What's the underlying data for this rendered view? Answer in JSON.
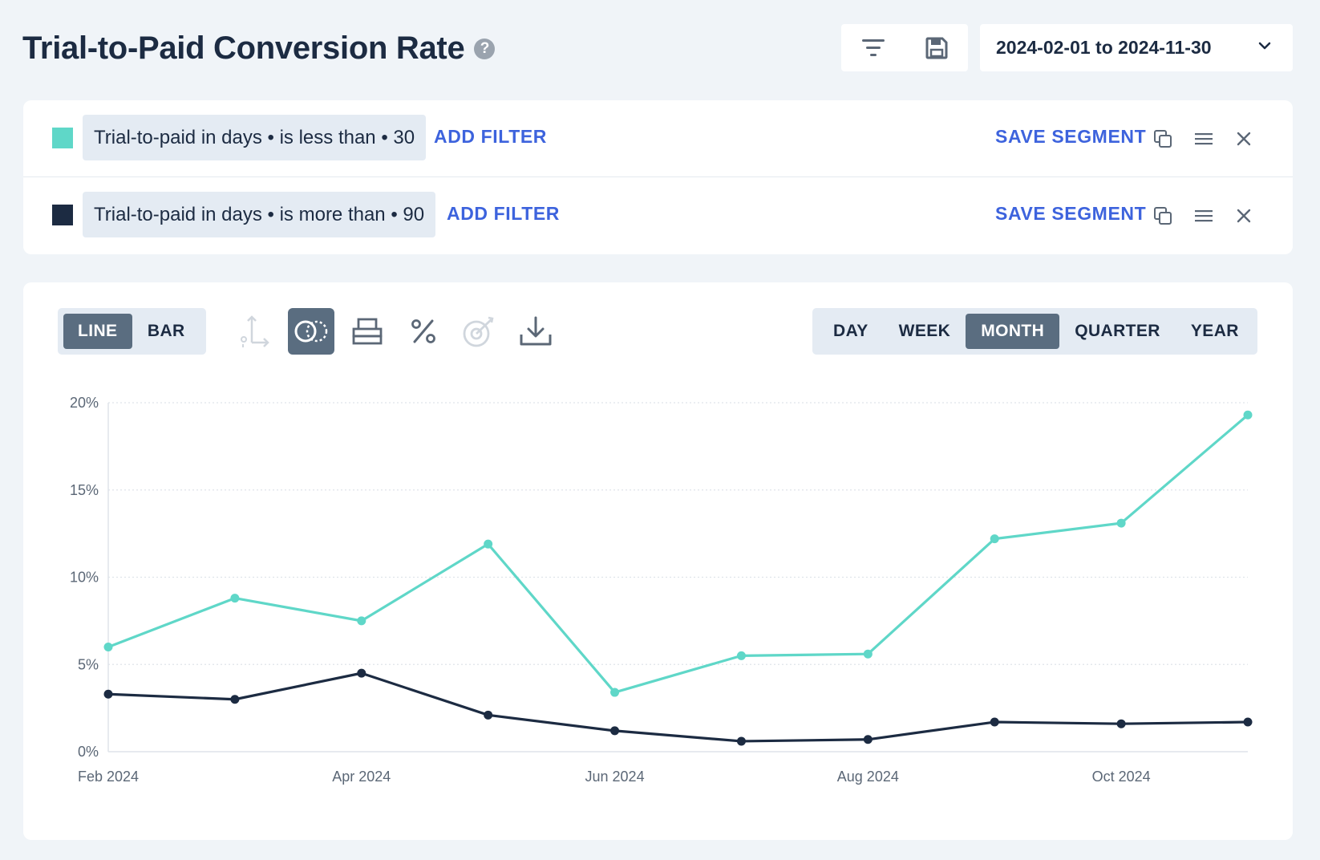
{
  "header": {
    "title": "Trial-to-Paid Conversion Rate",
    "help_glyph": "?",
    "date_range": "2024-02-01 to 2024-11-30"
  },
  "segments": [
    {
      "color": "#5fd7c8",
      "filter": "Trial-to-paid in days • is less than • 30",
      "add_filter": "ADD FILTER",
      "save": "SAVE SEGMENT"
    },
    {
      "color": "#1c2b42",
      "filter": "Trial-to-paid in days • is more than • 90",
      "add_filter": "ADD FILTER",
      "save": "SAVE SEGMENT"
    }
  ],
  "toolbar": {
    "chart_types": [
      "LINE",
      "BAR"
    ],
    "active_chart_type": "LINE",
    "periods": [
      "DAY",
      "WEEK",
      "MONTH",
      "QUARTER",
      "YEAR"
    ],
    "active_period": "MONTH",
    "tools": [
      "axis-icon",
      "compare-overlap-icon",
      "stack-icon",
      "percent-icon",
      "target-icon",
      "download-icon"
    ]
  },
  "chart_data": {
    "type": "line",
    "x": [
      "2024-02",
      "2024-03",
      "2024-04",
      "2024-05",
      "2024-06",
      "2024-07",
      "2024-08",
      "2024-09",
      "2024-10",
      "2024-11"
    ],
    "x_tick_labels": [
      {
        "index": 0,
        "label": "Feb 2024"
      },
      {
        "index": 2,
        "label": "Apr 2024"
      },
      {
        "index": 4,
        "label": "Jun 2024"
      },
      {
        "index": 6,
        "label": "Aug 2024"
      },
      {
        "index": 8,
        "label": "Oct 2024"
      }
    ],
    "y_ticks": [
      0,
      5,
      10,
      15,
      20
    ],
    "y_tick_labels": [
      "0%",
      "5%",
      "10%",
      "15%",
      "20%"
    ],
    "ylim": [
      0,
      20
    ],
    "grid": true,
    "series": [
      {
        "color": "#5fd7c8",
        "values": [
          6.0,
          8.8,
          7.5,
          11.9,
          3.4,
          5.5,
          5.6,
          12.2,
          13.1,
          19.3
        ]
      },
      {
        "color": "#1c2b42",
        "values": [
          3.3,
          3.0,
          4.5,
          2.1,
          1.2,
          0.6,
          0.7,
          1.7,
          1.6,
          1.7
        ]
      }
    ]
  }
}
